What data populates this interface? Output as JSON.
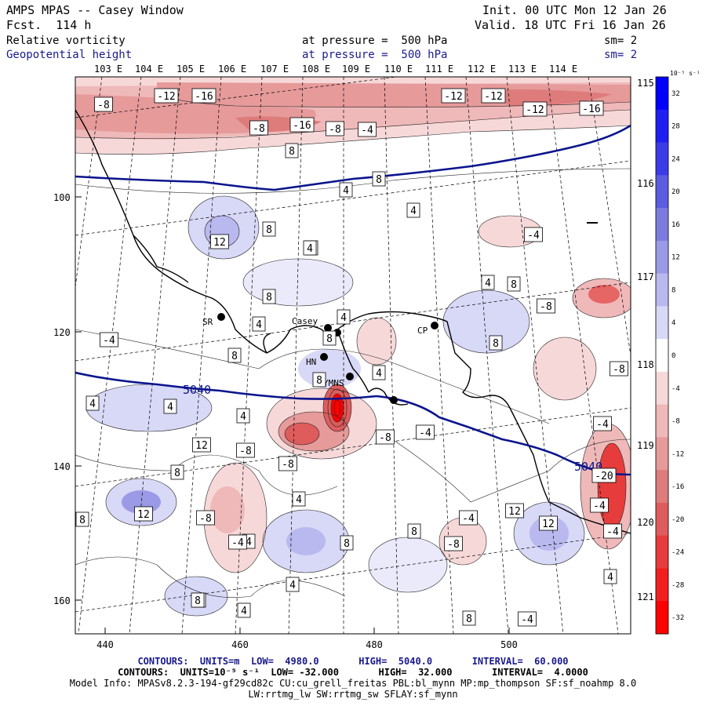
{
  "header": {
    "title": "AMPS MPAS -- Casey Window",
    "forecast": "Fcst.  114 h",
    "init": "Init. 00 UTC Mon 12 Jan 26",
    "valid": "Valid. 18 UTC Fri 16 Jan 26",
    "field1_name": "Relative vorticity",
    "field1_level": "at pressure =  500 hPa",
    "field1_sm": "sm= 2",
    "field2_name": "Geopotential height",
    "field2_level": "at pressure =  500 hPa",
    "field2_sm": "sm= 2"
  },
  "map": {
    "top_lon_labels": [
      "103 E",
      "104 E",
      "105 E",
      "106 E",
      "107 E",
      "108 E",
      "109 E",
      "110 E",
      "111 E",
      "112 E",
      "113 E",
      "114 E"
    ],
    "right_lon_labels": [
      "115 E",
      "116 E",
      "117 E",
      "118 E",
      "119 E",
      "120 E",
      "121 E"
    ],
    "left_axis_labels": [
      "100",
      "120",
      "140",
      "160"
    ],
    "bottom_axis_labels": [
      "440",
      "460",
      "480",
      "500"
    ],
    "stations": [
      "SR",
      "Casey",
      "HN",
      "CP",
      "YMNS"
    ],
    "height_contour_labels": [
      "5040",
      "5040"
    ],
    "vorticity_labels_pos": [
      "8",
      "4",
      "8",
      "4",
      "4",
      "12",
      "8",
      "4",
      "4",
      "8",
      "4",
      "8",
      "8",
      "8",
      "4",
      "8",
      "8",
      "4",
      "4",
      "12",
      "8",
      "4",
      "12",
      "4",
      "8",
      "4",
      "4",
      "8",
      "8",
      "12",
      "4",
      "8",
      "12",
      "8",
      "4",
      "8",
      "4"
    ],
    "vorticity_labels_neg": [
      "-8",
      "-12",
      "-16",
      "-8",
      "-12",
      "-16",
      "-12",
      "-16",
      "-12",
      "-8",
      "-4",
      "-4",
      "-4",
      "-8",
      "-8",
      "-4",
      "-8",
      "-8",
      "-8",
      "-4",
      "-8",
      "-4",
      "-4",
      "-20",
      "-4",
      "-4",
      "-8",
      "-4"
    ]
  },
  "colorbar": {
    "units": "10⁻⁵ s⁻¹",
    "tick_labels": [
      "32",
      "28",
      "24",
      "20",
      "16",
      "12",
      "8",
      "4",
      "0",
      "-4",
      "-8",
      "-12",
      "-16",
      "-20",
      "-24",
      "-28",
      "-32"
    ],
    "colors": [
      "#0000ff",
      "#1f1ff2",
      "#3c3ce6",
      "#5c5cde",
      "#7b7bde",
      "#9a9ae6",
      "#b9b9ef",
      "#d8d8f7",
      "#ffffff",
      "#f7d8d8",
      "#efb9b9",
      "#e69a9a",
      "#de7b7b",
      "#de5c5c",
      "#e63c3c",
      "#f21f1f",
      "#ff0000"
    ]
  },
  "footer": {
    "line1": "CONTOURS:  UNITS=m  LOW=  4980.0       HIGH=  5040.0       INTERVAL=  60.000",
    "line2": "CONTOURS:  UNITS=10⁻⁵ s⁻¹  LOW= -32.000       HIGH=  32.000       INTERVAL=  4.0000",
    "line3": "Model Info: MPASv8.2.3-194-gf29cd82c CU:cu_grell_freitas PBL:bl_mynn MP:mp_thompson SF:sf_noahmp 8.0",
    "line4": "LW:rrtmg_lw SW:rrtmg_sw SFLAY:sf_mynn"
  }
}
